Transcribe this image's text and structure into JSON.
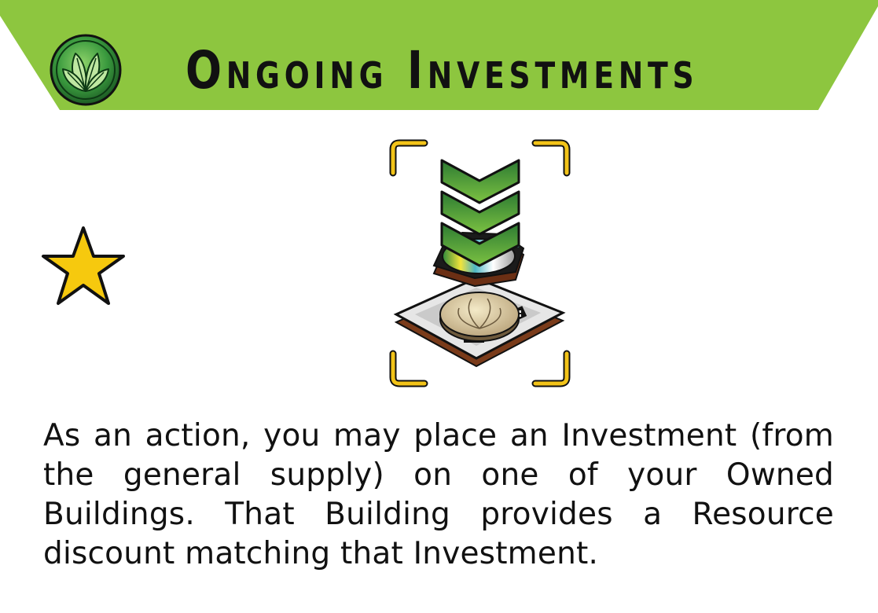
{
  "card": {
    "title": "Ongoing Investments",
    "rule_text": "As an action, you may place an Investment (from the general supply) on one of your Owned Buildings. That Building provides a Resource discount matching that Investment.",
    "icons": {
      "logo": "leaf-emblem-icon",
      "ability_type": "star-icon",
      "illustration": "investment-token-on-building-icon"
    }
  },
  "colors": {
    "banner": "#8dc63f",
    "logo_green": "#2f8a3c",
    "star_fill": "#f6c90e",
    "bracket": "#f2c318",
    "chevron_dark": "#2c7a32",
    "chevron_light": "#7cc242",
    "text": "#111111"
  }
}
